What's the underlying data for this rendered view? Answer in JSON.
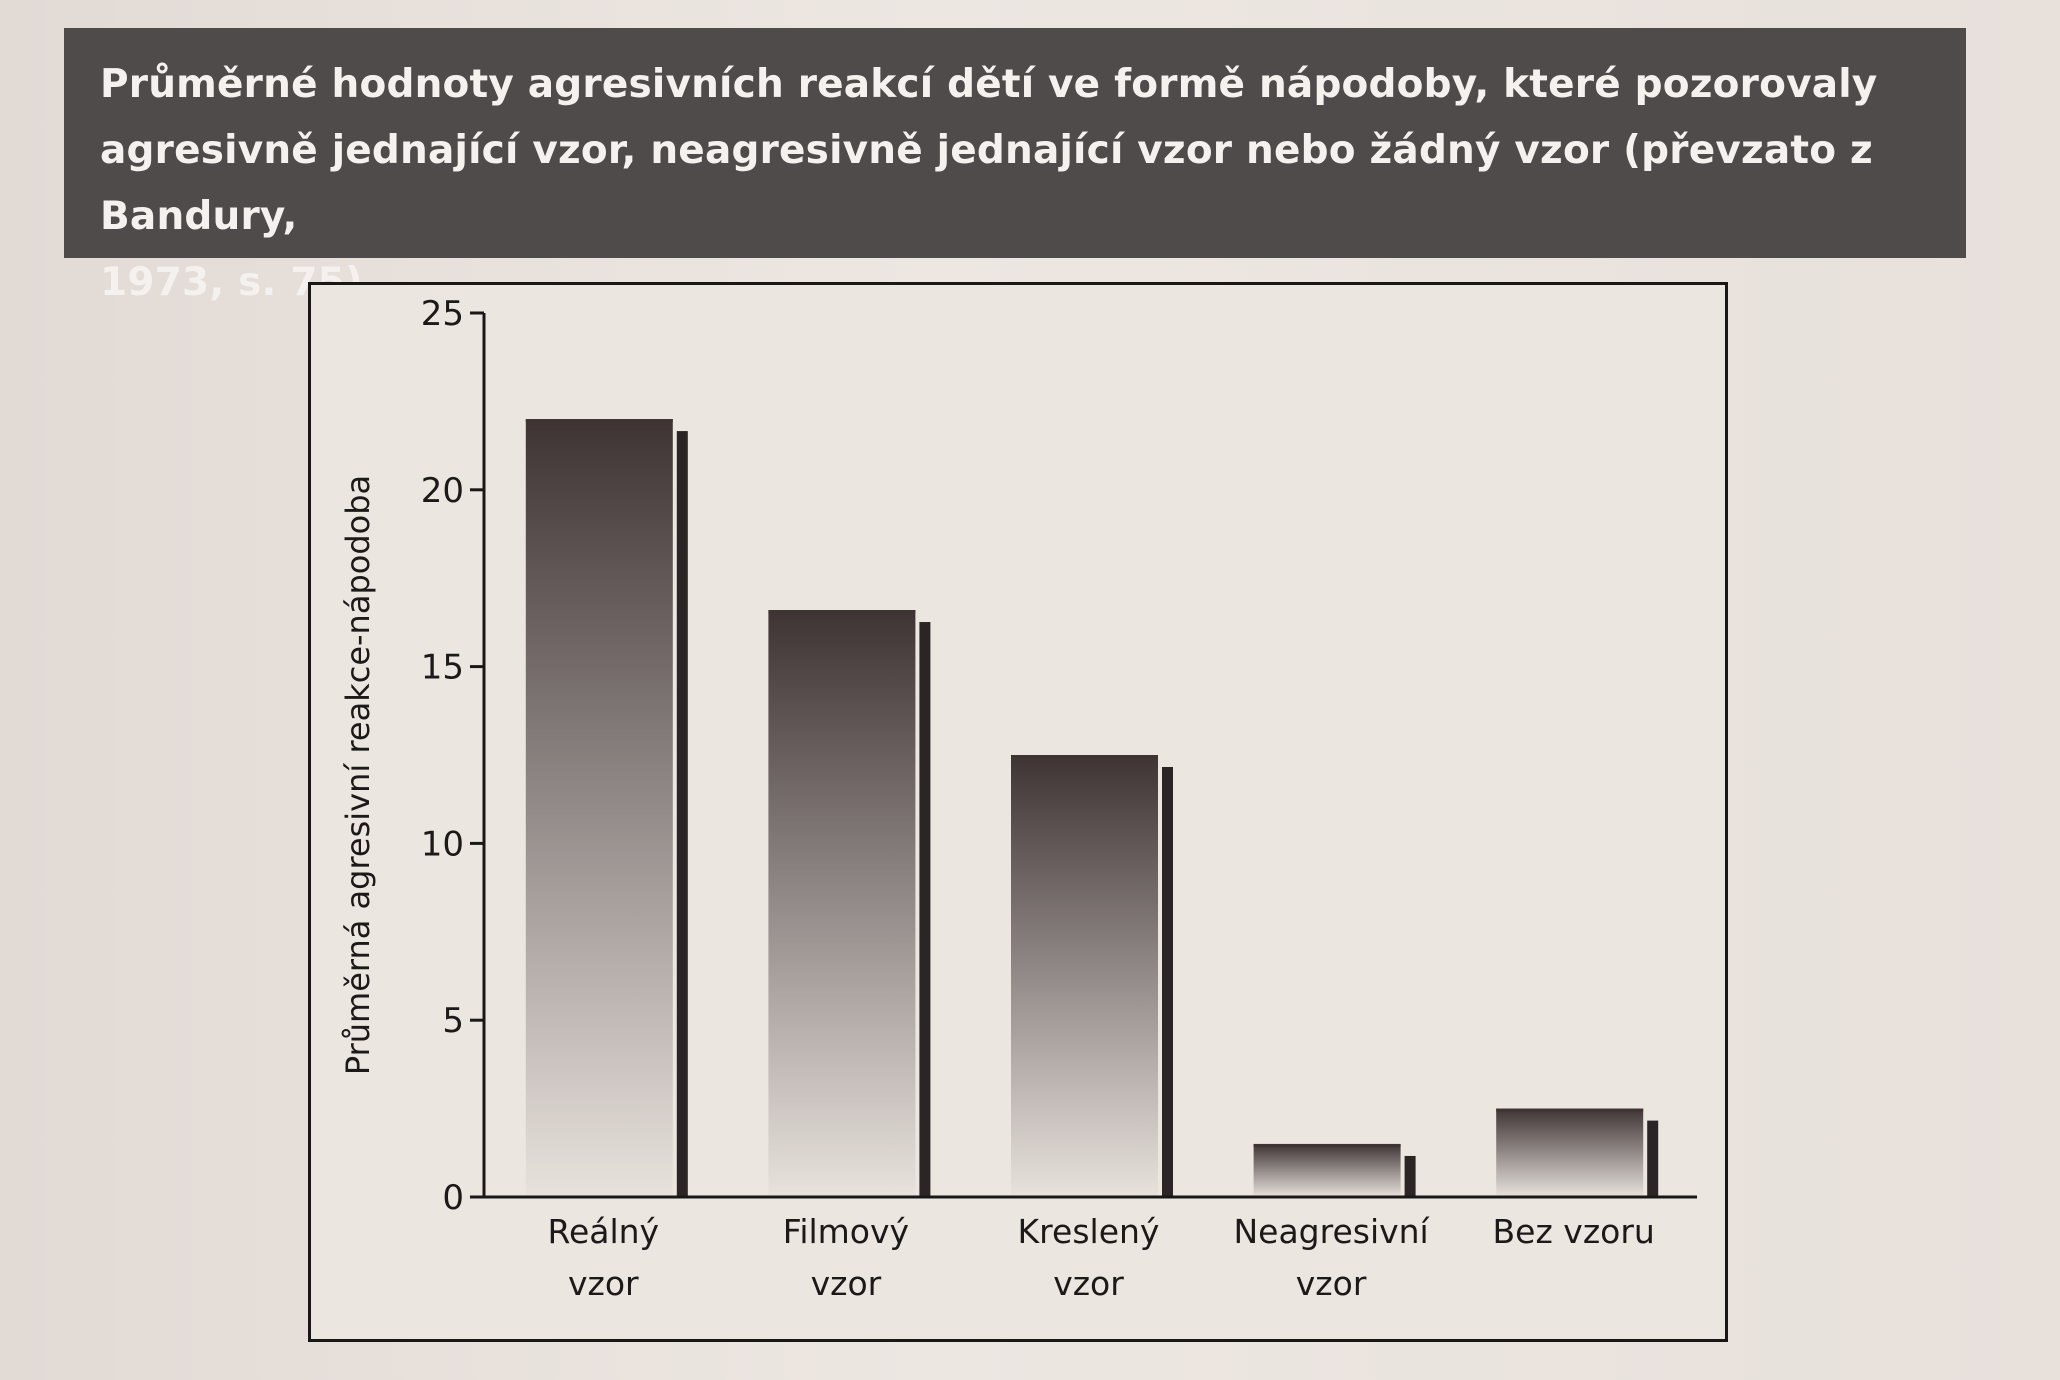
{
  "caption": "Průměrné hodnoty agresivních reakcí dětí ve formě nápodoby, které pozorovaly\nagresivně jednající vzor, neagresivně jednající vzor nebo žádný vzor (převzato z Bandury,\n1973, s. 75)",
  "colors": {
    "caption_bar": "#504b4b",
    "caption_text": "#f4f1ee",
    "bar_top": "#3e3434",
    "bar_bottom": "#e8e2dd",
    "bar_shadow": "#2b2525",
    "axis": "#1a1717"
  },
  "chart_data": {
    "type": "bar",
    "categories": [
      [
        "Reálný",
        "vzor"
      ],
      [
        "Filmový",
        "vzor"
      ],
      [
        "Kreslený",
        "vzor"
      ],
      [
        "Neagresivní",
        "vzor"
      ],
      [
        "Bez vzoru"
      ]
    ],
    "values": [
      22.0,
      16.6,
      12.5,
      1.5,
      2.5
    ],
    "title": "",
    "xlabel": "",
    "ylabel": "Průměrná agresivní reakce-nápodoba",
    "ylim": [
      0,
      25
    ],
    "yticks": [
      0,
      5,
      10,
      15,
      20,
      25
    ],
    "grid": false,
    "legend": "none"
  }
}
